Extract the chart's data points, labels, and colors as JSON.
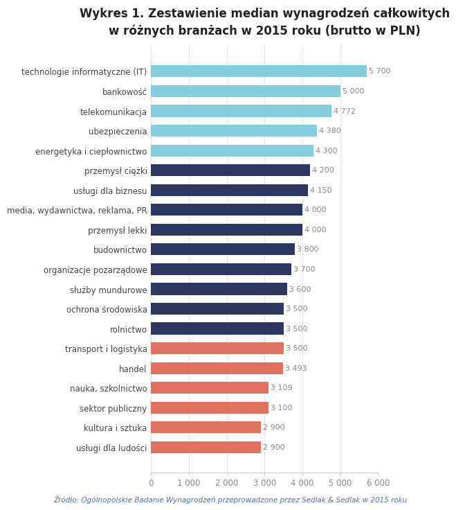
{
  "title": "Wykres 1. Zestawienie median wynagrodzeń całkowitych\nw różnych branżach w 2015 roku (brutto w PLN)",
  "categories": [
    "usługi dla ludości",
    "kultura i sztuka",
    "sektor publiczny",
    "nauka, szkolnictwo",
    "handel",
    "transport i logistyka",
    "rolnictwo",
    "ochrona środowiska",
    "służby mundurowe",
    "organizacje pozarządowe",
    "budownictwo",
    "przemysł lekki",
    "media, wydawnictwa, reklama, PR",
    "usługi dla biznesu",
    "przemysł ciężki",
    "energetyka i ciepłownictwo",
    "ubezpieczenia",
    "telekomunikacja",
    "bankowość",
    "technologie informatyczne (IT)"
  ],
  "values": [
    2900,
    2900,
    3100,
    3109,
    3493,
    3500,
    3500,
    3500,
    3600,
    3700,
    3800,
    4000,
    4000,
    4150,
    4200,
    4300,
    4380,
    4772,
    5000,
    5700
  ],
  "colors": [
    "#E07060",
    "#E07060",
    "#E07060",
    "#E07060",
    "#E07060",
    "#E07060",
    "#2D3561",
    "#2D3561",
    "#2D3561",
    "#2D3561",
    "#2D3561",
    "#2D3561",
    "#2D3561",
    "#2D3561",
    "#2D3561",
    "#85CEDE",
    "#85CEDE",
    "#85CEDE",
    "#85CEDE",
    "#85CEDE"
  ],
  "value_labels": [
    "2 900",
    "2 900",
    "3 100",
    "3 109",
    "3 493",
    "3 500",
    "3 500",
    "3 500",
    "3 600",
    "3 700",
    "3 800",
    "4 000",
    "4 000",
    "4 150",
    "4 200",
    "4 300",
    "4 380",
    "4 772",
    "5 000",
    "5 700"
  ],
  "xlim": [
    0,
    6000
  ],
  "xticks": [
    0,
    1000,
    2000,
    3000,
    4000,
    5000,
    6000
  ],
  "xtick_labels": [
    "0",
    "1 000",
    "2 000",
    "3 000",
    "4 000",
    "5 000",
    "6 000"
  ],
  "footer": "Źródło: Ogólnopolskie Badanie Wynagrodzeń przeprowadzone przez Sedlak & Sedlak w 2015 roku",
  "footer_color": "#4472C4",
  "bg_color": "#FFFFFF",
  "bar_height": 0.6,
  "title_fontsize": 12,
  "bar_label_fontsize": 8,
  "ytick_fontsize": 8.5,
  "xtick_fontsize": 8.5
}
